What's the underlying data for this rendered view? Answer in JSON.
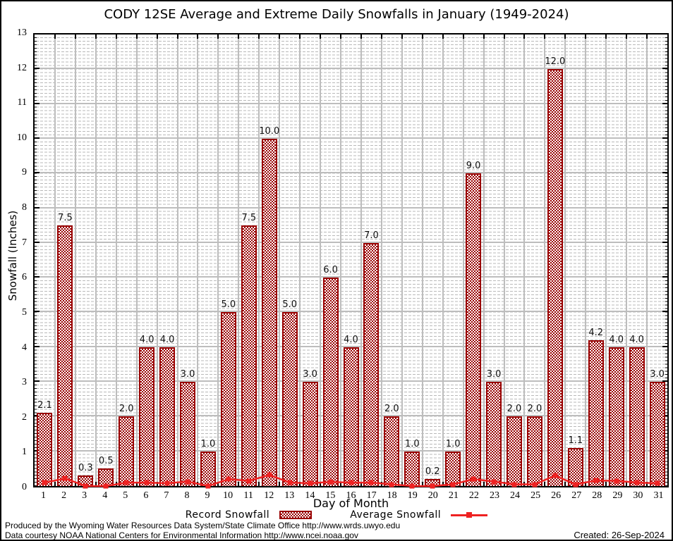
{
  "title": "CODY 12SE Average and Extreme Daily Snowfalls in January (1949-2024)",
  "y_axis": {
    "label": "Snowfall (Inches)"
  },
  "x_axis": {
    "label": "Day of Month"
  },
  "legend": {
    "record_label": "Record Snowfall",
    "average_label": "Average Snowfall"
  },
  "footer": {
    "line1": "Produced by the Wyoming Water Resources Data System/State Climate Office http://www.wrds.uwyo.edu",
    "line2": "Data courtesy NOAA National Centers for Environmental Information http://www.ncei.noaa.gov",
    "created": "Created: 26-Sep-2024"
  },
  "colors": {
    "bar_border": "#990000",
    "bar_fill": "#990000",
    "avg_line": "#ee2222",
    "grid_major": "#bdbdbd",
    "grid_minor": "#b9b9b9",
    "axis": "#000000"
  },
  "chart_data": {
    "type": "bar",
    "title": "CODY 12SE Average and Extreme Daily Snowfalls in January (1949-2024)",
    "xlabel": "Day of Month",
    "ylabel": "Snowfall (Inches)",
    "ylim": [
      0,
      13
    ],
    "y_ticks": [
      0,
      1,
      2,
      3,
      4,
      5,
      6,
      7,
      8,
      9,
      10,
      11,
      12,
      13
    ],
    "grid": true,
    "legend_position": "bottom",
    "categories": [
      1,
      2,
      3,
      4,
      5,
      6,
      7,
      8,
      9,
      10,
      11,
      12,
      13,
      14,
      15,
      16,
      17,
      18,
      19,
      20,
      21,
      22,
      23,
      24,
      25,
      26,
      27,
      28,
      29,
      30,
      31
    ],
    "series": [
      {
        "name": "Record Snowfall",
        "type": "bar",
        "values": [
          2.1,
          7.5,
          0.3,
          0.5,
          2.0,
          4.0,
          4.0,
          3.0,
          1.0,
          5.0,
          7.5,
          10.0,
          5.0,
          3.0,
          6.0,
          4.0,
          7.0,
          2.0,
          1.0,
          0.2,
          1.0,
          9.0,
          3.0,
          2.0,
          2.0,
          12.0,
          1.1,
          4.2,
          4.0,
          4.0,
          3.0
        ]
      },
      {
        "name": "Average Snowfall",
        "type": "line",
        "values": [
          0.1,
          0.22,
          0.0,
          0.0,
          0.1,
          0.1,
          0.08,
          0.13,
          0.0,
          0.2,
          0.15,
          0.32,
          0.1,
          0.08,
          0.12,
          0.1,
          0.1,
          0.05,
          0.0,
          0.0,
          0.05,
          0.2,
          0.13,
          0.05,
          0.05,
          0.3,
          0.05,
          0.16,
          0.15,
          0.1,
          0.08
        ]
      }
    ]
  }
}
